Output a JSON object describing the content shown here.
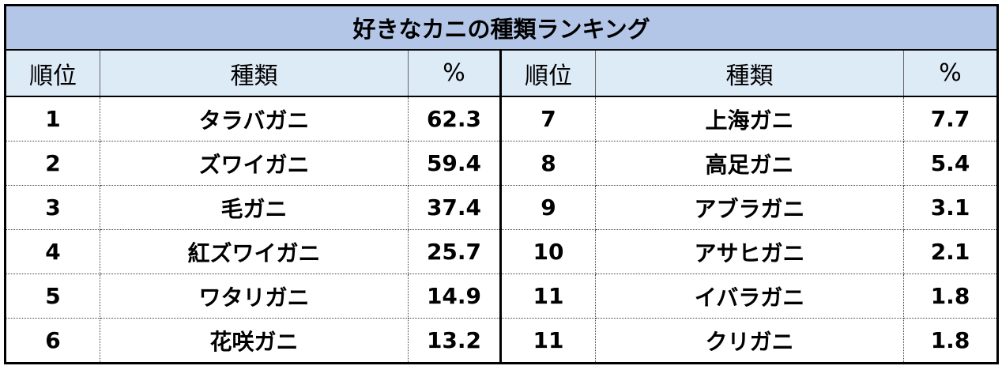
{
  "title": "好きなカニの種類ランキング",
  "table": {
    "header": [
      "順位",
      "種類",
      "%",
      "順位",
      "種類",
      "%"
    ],
    "rows": [
      [
        "1",
        "タラバガニ",
        "62.3",
        "7",
        "上海ガニ",
        "7.7"
      ],
      [
        "2",
        "ズワイガニ",
        "59.4",
        "8",
        "高足ガニ",
        "5.4"
      ],
      [
        "3",
        "毛ガニ",
        "37.4",
        "9",
        "アブラガニ",
        "3.1"
      ],
      [
        "4",
        "紅ズワイガニ",
        "25.7",
        "10",
        "アサヒガニ",
        "2.1"
      ],
      [
        "5",
        "ワタリガニ",
        "14.9",
        "11",
        "イバラガニ",
        "1.8"
      ],
      [
        "6",
        "花咲ガニ",
        "13.2",
        "11",
        "クリガニ",
        "1.8"
      ]
    ]
  }
}
